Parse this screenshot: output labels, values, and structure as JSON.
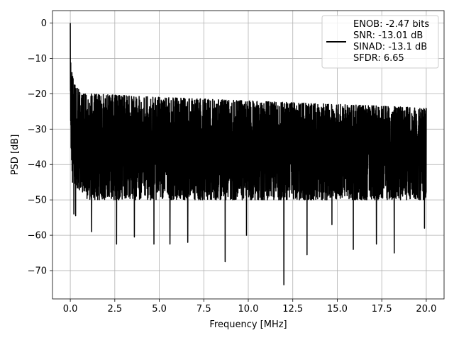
{
  "chart_data": {
    "type": "line",
    "title": "",
    "xlabel": "Frequency [MHz]",
    "ylabel": "PSD [dB]",
    "xlim": [
      -1.0,
      21.0
    ],
    "ylim": [
      -78,
      3.5
    ],
    "xticks": [
      0.0,
      2.5,
      5.0,
      7.5,
      10.0,
      12.5,
      15.0,
      17.5,
      20.0
    ],
    "xtick_labels": [
      "0.0",
      "2.5",
      "5.0",
      "7.5",
      "10.0",
      "12.5",
      "15.0",
      "17.5",
      "20.0"
    ],
    "yticks": [
      0,
      -10,
      -20,
      -30,
      -40,
      -50,
      -60,
      -70
    ],
    "ytick_labels": [
      "0",
      "−10",
      "−20",
      "−30",
      "−40",
      "−50",
      "−60",
      "−70"
    ],
    "grid": true,
    "legend_position": "top-right",
    "series": [
      {
        "name": "ENOB: -2.47 bits\nSNR: -13.01 dB\nSINAD: -13.1 dB\nSFDR: 6.65",
        "color": "#000000",
        "peak": {
          "x": 0.0,
          "y": 0.0
        },
        "envelope": {
          "upper": [
            [
              0.0,
              -7
            ],
            [
              0.1,
              -14
            ],
            [
              0.3,
              -18
            ],
            [
              1.0,
              -20
            ],
            [
              5.0,
              -21
            ],
            [
              10.0,
              -22
            ],
            [
              15.0,
              -23
            ],
            [
              20.0,
              -24
            ]
          ],
          "lower": [
            [
              0.0,
              -30
            ],
            [
              0.1,
              -45
            ],
            [
              1.0,
              -50
            ],
            [
              20.0,
              -50
            ]
          ]
        },
        "deep_nulls": [
          {
            "x": 0.2,
            "y": -54
          },
          {
            "x": 0.3,
            "y": -54.5
          },
          {
            "x": 1.2,
            "y": -59
          },
          {
            "x": 2.6,
            "y": -62.5
          },
          {
            "x": 3.6,
            "y": -60.5
          },
          {
            "x": 4.7,
            "y": -62.5
          },
          {
            "x": 5.6,
            "y": -62.5
          },
          {
            "x": 6.6,
            "y": -62
          },
          {
            "x": 8.7,
            "y": -67.5
          },
          {
            "x": 9.9,
            "y": -60
          },
          {
            "x": 12.0,
            "y": -74
          },
          {
            "x": 13.3,
            "y": -65.5
          },
          {
            "x": 14.7,
            "y": -57
          },
          {
            "x": 15.9,
            "y": -64
          },
          {
            "x": 17.2,
            "y": -62.5
          },
          {
            "x": 18.2,
            "y": -65
          },
          {
            "x": 19.9,
            "y": -58
          }
        ],
        "legend_lines": [
          "ENOB: -2.47 bits",
          "SNR: -13.01 dB",
          "SINAD: -13.1 dB",
          "SFDR: 6.65"
        ]
      }
    ]
  }
}
